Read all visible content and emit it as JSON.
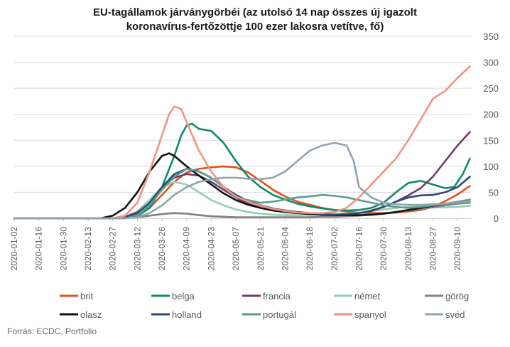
{
  "chart_data": {
    "type": "line",
    "title": "EU-tagállamok járványgörbéi (az utolsó 14 nap összes új igazolt koronavírus-fertőzöttje 100 ezer lakosra vetítve, fő)",
    "title_lines": [
      "EU-tagállamok járványgörbéi (az utolsó 14 nap összes új igazolt",
      "koronavírus-fertőzöttje 100 ezer lakosra vetítve, fő)"
    ],
    "xlabel": "",
    "ylabel": "",
    "ylim": [
      0,
      350
    ],
    "yticks": [
      "0",
      "50",
      "100",
      "150",
      "200",
      "250",
      "300",
      "350"
    ],
    "y_axis_position": "right",
    "x_ticks": [
      "2020-01-02",
      "2020-01-16",
      "2020-01-30",
      "2020-02-13",
      "2020-02-27",
      "2020-03-12",
      "2020-03-26",
      "2020-04-09",
      "2020-04-23",
      "2020-05-07",
      "2020-05-21",
      "2020-06-04",
      "2020-06-18",
      "2020-07-02",
      "2020-07-16",
      "2020-07-30",
      "2020-08-13",
      "2020-08-27",
      "2020-09-10"
    ],
    "grid": "horizontal",
    "legend_position": "bottom",
    "series": [
      {
        "name": "brit",
        "color": "#e0531a",
        "x": [
          0,
          56,
          63,
          70,
          77,
          84,
          91,
          98,
          105,
          112,
          119,
          126,
          133,
          140,
          147,
          154,
          161,
          168,
          175,
          182,
          189,
          196,
          203,
          210,
          217,
          224,
          231,
          238,
          245,
          252,
          259
        ],
        "values": [
          0,
          0,
          2,
          6,
          20,
          45,
          70,
          88,
          95,
          98,
          100,
          98,
          88,
          72,
          55,
          42,
          32,
          26,
          20,
          16,
          13,
          11,
          10,
          10,
          11,
          13,
          16,
          22,
          33,
          46,
          62
        ]
      },
      {
        "name": "belga",
        "color": "#0e8a6b",
        "x": [
          0,
          63,
          70,
          77,
          84,
          91,
          95,
          98,
          101,
          105,
          112,
          119,
          126,
          133,
          140,
          147,
          154,
          161,
          168,
          175,
          182,
          189,
          196,
          203,
          210,
          217,
          224,
          231,
          238,
          245,
          250,
          255,
          259
        ],
        "values": [
          0,
          0,
          4,
          20,
          60,
          120,
          160,
          178,
          182,
          172,
          168,
          145,
          110,
          80,
          60,
          45,
          36,
          28,
          23,
          19,
          16,
          15,
          16,
          20,
          30,
          50,
          68,
          72,
          65,
          58,
          60,
          85,
          115
        ]
      },
      {
        "name": "francia",
        "color": "#6a3d6a",
        "x": [
          0,
          56,
          63,
          70,
          77,
          84,
          91,
          98,
          105,
          112,
          119,
          126,
          133,
          140,
          147,
          154,
          161,
          168,
          175,
          182,
          189,
          196,
          203,
          210,
          217,
          224,
          231,
          238,
          245,
          252,
          259
        ],
        "values": [
          0,
          0,
          3,
          12,
          35,
          60,
          78,
          85,
          82,
          70,
          55,
          40,
          28,
          20,
          15,
          12,
          10,
          8,
          7,
          7,
          8,
          10,
          15,
          22,
          32,
          44,
          58,
          80,
          110,
          140,
          166
        ]
      },
      {
        "name": "német",
        "color": "#8fd1b4",
        "x": [
          0,
          56,
          63,
          70,
          77,
          84,
          91,
          98,
          105,
          112,
          119,
          126,
          133,
          140,
          147,
          154,
          161,
          168,
          175,
          182,
          189,
          196,
          203,
          210,
          217,
          224,
          231,
          238,
          245,
          252,
          259
        ],
        "values": [
          0,
          0,
          2,
          10,
          35,
          60,
          70,
          65,
          50,
          35,
          25,
          17,
          12,
          9,
          7,
          6,
          6,
          7,
          8,
          8,
          9,
          11,
          14,
          17,
          20,
          22,
          23,
          21,
          21,
          22,
          24
        ]
      },
      {
        "name": "görög",
        "color": "#808080",
        "x": [
          0,
          56,
          63,
          70,
          77,
          84,
          91,
          98,
          105,
          112,
          119,
          126,
          133,
          140,
          147,
          154,
          161,
          168,
          175,
          182,
          189,
          196,
          203,
          210,
          217,
          224,
          231,
          238,
          245,
          252,
          259
        ],
        "values": [
          0,
          0,
          1,
          2,
          5,
          8,
          10,
          9,
          6,
          4,
          3,
          2,
          2,
          2,
          2,
          2,
          2,
          2,
          3,
          3,
          4,
          5,
          7,
          9,
          12,
          15,
          18,
          21,
          25,
          28,
          30
        ]
      },
      {
        "name": "olasz",
        "color": "#111111",
        "x": [
          0,
          49,
          56,
          63,
          70,
          77,
          84,
          88,
          91,
          98,
          105,
          112,
          119,
          126,
          133,
          140,
          147,
          154,
          161,
          168,
          175,
          182,
          189,
          196,
          203,
          210,
          217,
          224,
          231,
          238,
          245,
          252,
          259
        ],
        "values": [
          0,
          0,
          5,
          20,
          50,
          90,
          120,
          125,
          120,
          100,
          82,
          65,
          48,
          35,
          26,
          20,
          15,
          12,
          10,
          8,
          7,
          6,
          6,
          6,
          7,
          9,
          12,
          16,
          20,
          24,
          28,
          30,
          32
        ]
      },
      {
        "name": "holland",
        "color": "#2e4a78",
        "x": [
          0,
          56,
          63,
          70,
          77,
          84,
          91,
          98,
          105,
          112,
          119,
          126,
          133,
          140,
          147,
          154,
          161,
          168,
          175,
          182,
          189,
          196,
          203,
          210,
          217,
          224,
          231,
          238,
          245,
          252,
          259
        ],
        "values": [
          0,
          0,
          2,
          10,
          30,
          60,
          85,
          95,
          90,
          78,
          60,
          45,
          33,
          25,
          19,
          15,
          12,
          10,
          8,
          7,
          8,
          10,
          14,
          22,
          32,
          40,
          44,
          45,
          50,
          60,
          80
        ]
      },
      {
        "name": "portugál",
        "color": "#5a9e90",
        "x": [
          0,
          63,
          70,
          77,
          84,
          91,
          98,
          105,
          112,
          119,
          126,
          133,
          140,
          147,
          154,
          161,
          168,
          175,
          182,
          189,
          196,
          203,
          210,
          217,
          224,
          231,
          238,
          245,
          252,
          259
        ],
        "values": [
          0,
          0,
          5,
          25,
          55,
          80,
          95,
          90,
          78,
          60,
          40,
          35,
          30,
          32,
          36,
          40,
          42,
          45,
          43,
          40,
          35,
          30,
          25,
          22,
          20,
          22,
          25,
          28,
          32,
          36
        ]
      },
      {
        "name": "spanyol",
        "color": "#f29480",
        "x": [
          0,
          56,
          63,
          70,
          77,
          84,
          88,
          91,
          95,
          98,
          105,
          112,
          119,
          126,
          133,
          140,
          147,
          154,
          161,
          168,
          175,
          182,
          189,
          196,
          203,
          210,
          217,
          224,
          231,
          238,
          245,
          252,
          259
        ],
        "values": [
          0,
          0,
          5,
          30,
          90,
          160,
          200,
          215,
          210,
          185,
          130,
          90,
          60,
          42,
          32,
          24,
          18,
          14,
          11,
          10,
          10,
          12,
          20,
          40,
          65,
          90,
          115,
          150,
          190,
          230,
          245,
          270,
          292
        ]
      },
      {
        "name": "svéd",
        "color": "#8fa3b4",
        "x": [
          0,
          63,
          70,
          77,
          84,
          91,
          98,
          105,
          112,
          119,
          126,
          133,
          140,
          147,
          154,
          161,
          168,
          175,
          182,
          189,
          193,
          196,
          203,
          210,
          217,
          224,
          231,
          238,
          245,
          252,
          259
        ],
        "values": [
          0,
          0,
          2,
          10,
          25,
          45,
          60,
          70,
          75,
          78,
          78,
          76,
          75,
          78,
          90,
          110,
          130,
          140,
          145,
          140,
          110,
          60,
          40,
          30,
          27,
          26,
          26,
          27,
          28,
          30,
          32
        ]
      }
    ],
    "x_scale": {
      "start": "2020-01-02",
      "end": "2020-09-18"
    }
  },
  "legend": [
    {
      "label": "brit",
      "color": "#e0531a"
    },
    {
      "label": "belga",
      "color": "#0e8a6b"
    },
    {
      "label": "francia",
      "color": "#6a3d6a"
    },
    {
      "label": "német",
      "color": "#8fd1b4"
    },
    {
      "label": "görög",
      "color": "#808080"
    },
    {
      "label": "olasz",
      "color": "#111111"
    },
    {
      "label": "holland",
      "color": "#2e4a78"
    },
    {
      "label": "portugál",
      "color": "#5a9e90"
    },
    {
      "label": "spanyol",
      "color": "#f29480"
    },
    {
      "label": "svéd",
      "color": "#8fa3b4"
    }
  ],
  "source": "Forrás: ECDC, Portfolio"
}
